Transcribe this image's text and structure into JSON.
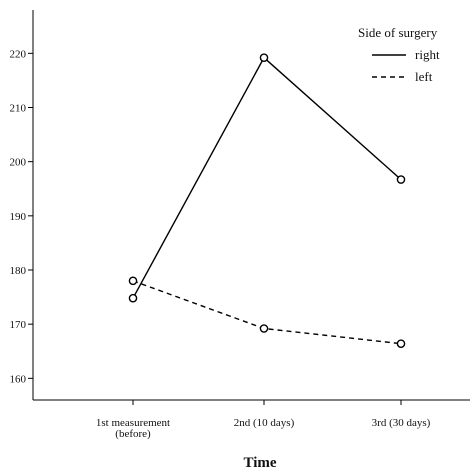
{
  "chart_data": {
    "type": "line",
    "categories": [
      "1st measurement (before)",
      "2nd (10 days)",
      "3rd (30 days)"
    ],
    "category_lines": [
      [
        "1st measurement",
        "(before)"
      ],
      [
        "2nd (10 days)"
      ],
      [
        "3rd (30 days)"
      ]
    ],
    "series": [
      {
        "name": "right",
        "values": [
          174.8,
          219.2,
          196.7
        ],
        "style": "solid"
      },
      {
        "name": "left",
        "values": [
          178.0,
          169.2,
          166.4
        ],
        "style": "dashed"
      }
    ],
    "xlabel": "Time",
    "ylabel": "",
    "ylim": [
      156,
      228
    ],
    "yticks": [
      160,
      170,
      180,
      190,
      200,
      210,
      220
    ],
    "legend": {
      "title": "Side of surgery",
      "position": "top-right"
    },
    "grid": false,
    "line_color": "#000000"
  }
}
